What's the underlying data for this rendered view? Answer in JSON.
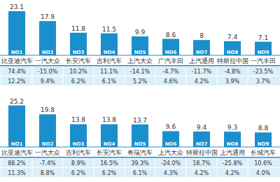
{
  "chart_data": [
    {
      "type": "bar",
      "categories": [
        "比亚迪汽车",
        "一汽大众",
        "长安汽车",
        "吉利汽车",
        "上汽大众",
        "广汽丰田",
        "上汽通用",
        "特斯拉中国",
        "一汽丰田"
      ],
      "values": [
        23.1,
        17.9,
        11.8,
        11.5,
        9.9,
        8.6,
        8.0,
        7.4,
        7.1
      ],
      "ranks": [
        "NO1",
        "NO2",
        "NO3",
        "NO4",
        "NO5",
        "NO6",
        "NO7",
        "NO8",
        "NO9"
      ],
      "table_rows": [
        [
          "74.4%",
          "-15.0%",
          "10.2%",
          "11.1%",
          "-14.1%",
          "-4.7%",
          "-11.7%",
          "-4.8%",
          "-23.5%"
        ],
        [
          "12.2%",
          "9.4%",
          "6.2%",
          "6.1%",
          "5.2%",
          "4.6%",
          "4.2%",
          "3.9%",
          "3.7%"
        ]
      ],
      "color": "#1a8fce",
      "ylim": [
        0,
        26
      ],
      "data_labels": true,
      "tick_labels": "x",
      "grid": false
    },
    {
      "type": "bar",
      "categories": [
        "比亚迪汽车",
        "一汽大众",
        "吉利汽车",
        "长安汽车",
        "奇瑞汽车",
        "上汽大众",
        "特斯拉中国",
        "上汽通用",
        "长城汽车"
      ],
      "values": [
        25.2,
        19.8,
        13.8,
        13.8,
        13.7,
        9.6,
        9.4,
        9.3,
        8.8
      ],
      "ranks": [
        "NO1",
        "NO2",
        "NO3",
        "NO4",
        "NO5",
        "NO6",
        "NO7",
        "NO8",
        "NO9"
      ],
      "table_rows": [
        [
          "88.2%",
          "-7.4%",
          "8.9%",
          "16.5%",
          "39.3%",
          "-24.0%",
          "18.7%",
          "-25.8%",
          "10.6%"
        ],
        [
          "11.3%",
          "8.8%",
          "6.2%",
          "6.2%",
          "6.1%",
          "4.3%",
          "4.2%",
          "4.2%",
          "4.0%"
        ]
      ],
      "color": "#1a8fce",
      "ylim": [
        0,
        28
      ],
      "data_labels": true,
      "tick_labels": "x",
      "grid": false
    }
  ]
}
